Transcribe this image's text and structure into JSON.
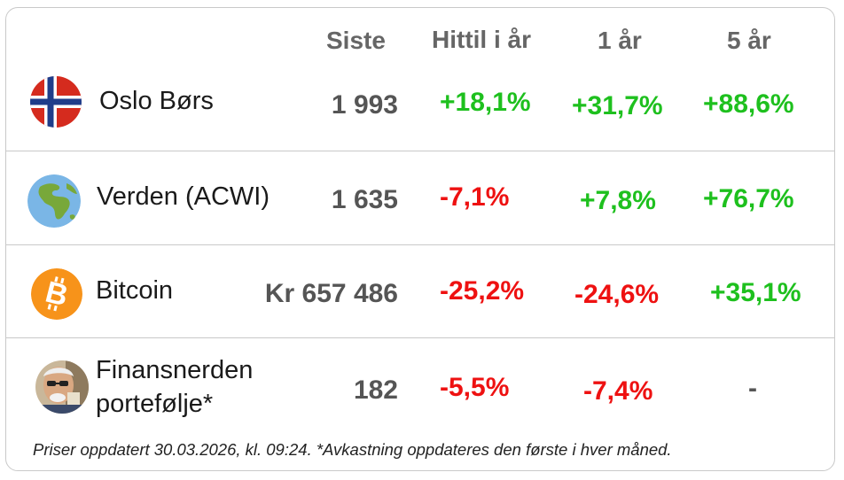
{
  "header": {
    "last": "Siste",
    "ytd": "Hittil i år",
    "one_year": "1 år",
    "five_year": "5 år"
  },
  "rows": [
    {
      "icon": "norway-flag-icon",
      "name": "Oslo Børs",
      "last": "1 993",
      "ytd": "+18,1%",
      "one_year": "+31,7%",
      "five_year": "+88,6%"
    },
    {
      "icon": "globe-icon",
      "name": "Verden (ACWI)",
      "last": "1 635",
      "ytd": "-7,1%",
      "one_year": "+7,8%",
      "five_year": "+76,7%"
    },
    {
      "icon": "bitcoin-icon",
      "name": "Bitcoin",
      "last": "Kr 657 486",
      "ytd": "-25,2%",
      "one_year": "-24,6%",
      "five_year": "+35,1%"
    },
    {
      "icon": "portfolio-avatar-icon",
      "name_line1": "Finansnerden",
      "name_line2": "portefølje*",
      "last": "182",
      "ytd": "-5,5%",
      "one_year": "-7,4%",
      "five_year": "-"
    }
  ],
  "footnote": "Priser oppdatert 30.03.2026, kl. 09:24. *Avkastning oppdateres den første i hver måned.",
  "colors": {
    "positive": "#1ec01e",
    "negative": "#ee1111",
    "neutral": "#555555",
    "border": "#c9c9c9"
  }
}
